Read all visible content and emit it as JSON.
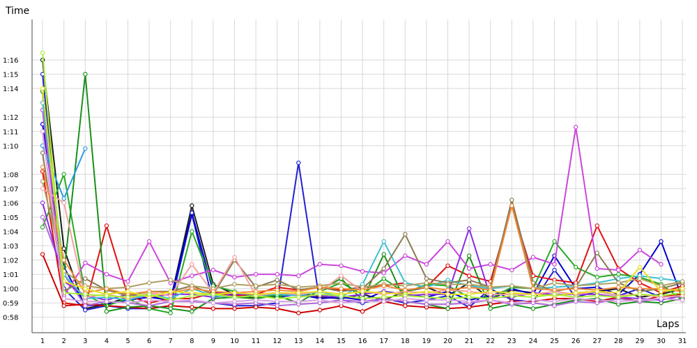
{
  "chart_data": {
    "type": "line",
    "xlabel": "Laps",
    "ylabel": "Time",
    "x": [
      1,
      2,
      3,
      4,
      5,
      6,
      7,
      8,
      9,
      10,
      11,
      12,
      13,
      14,
      15,
      16,
      17,
      18,
      19,
      20,
      21,
      22,
      23,
      24,
      25,
      26,
      27,
      28,
      29,
      30,
      31
    ],
    "xlim": [
      0,
      31
    ],
    "ylim_seconds": [
      57.5,
      78.0
    ],
    "ytick_labels": [
      "0:58",
      "0:59",
      "1:00",
      "1:01",
      "1:02",
      "1:03",
      "1:04",
      "1:05",
      "1:06",
      "1:07",
      "1:08",
      "1:10",
      "1:11",
      "1:12",
      "1:14",
      "1:15",
      "1:16"
    ],
    "ytick_seconds": [
      58,
      59,
      60,
      61,
      62,
      63,
      64,
      65,
      66,
      67,
      68,
      70,
      71,
      72,
      74,
      75,
      76
    ],
    "grid": true,
    "legend": "none",
    "series": [
      {
        "color": "#1a1a1a",
        "values": [
          76.0,
          62.8,
          58.6,
          58.9,
          59.4,
          59.5,
          59.2,
          65.8,
          60.3,
          59.6,
          59.3,
          59.6,
          59.7,
          59.4,
          59.3,
          59.6,
          59.2,
          59.8,
          60.1,
          59.5,
          60.4,
          59.3,
          59.9,
          59.7,
          59.5,
          59.7,
          59.8,
          60.0,
          59.4,
          59.6,
          60.0
        ]
      },
      {
        "color": "#2020d0",
        "values": [
          75.0,
          60.0,
          58.5,
          58.8,
          58.6,
          58.6,
          58.8,
          65.2,
          59.0,
          58.8,
          58.8,
          59.0,
          68.8,
          59.0,
          59.2,
          59.0,
          59.3,
          59.0,
          59.2,
          59.5,
          58.7,
          60.0,
          59.2,
          59.1,
          61.3,
          59.4,
          59.8,
          59.5,
          60.0,
          59.4,
          59.7
        ]
      },
      {
        "color": "#0000cc",
        "values": [
          71.5,
          61.5,
          58.8,
          58.9,
          59.2,
          59.4,
          59.2,
          65.3,
          59.8,
          59.6,
          59.5,
          59.4,
          59.6,
          59.3,
          59.4,
          59.2,
          59.8,
          59.6,
          59.4,
          59.8,
          59.2,
          59.5,
          60.0,
          59.6,
          62.3,
          60.0,
          60.1,
          59.6,
          61.0,
          63.3,
          59.3
        ]
      },
      {
        "color": "#e01010",
        "values": [
          68.2,
          59.0,
          58.8,
          64.4,
          59.5,
          59.0,
          59.3,
          59.3,
          59.7,
          59.5,
          59.6,
          60.1,
          59.9,
          60.1,
          59.9,
          60.1,
          60.2,
          60.4,
          60.1,
          61.6,
          60.9,
          60.5,
          65.8,
          60.9,
          60.6,
          60.4,
          64.4,
          61.4,
          60.4,
          59.7,
          60.2
        ]
      },
      {
        "color": "#cc0000",
        "values": [
          62.4,
          58.8,
          58.9,
          58.8,
          58.7,
          58.6,
          58.8,
          58.7,
          58.6,
          58.6,
          58.7,
          58.6,
          58.3,
          58.5,
          58.8,
          58.4,
          59.1,
          58.8,
          58.7,
          58.6,
          58.7,
          58.9,
          59.1,
          59.1,
          59.3,
          59.3,
          59.1,
          59.4,
          59.1,
          59.5,
          59.6
        ]
      },
      {
        "color": "#22aa22",
        "values": [
          64.3,
          68.0,
          59.6,
          58.8,
          59.3,
          58.6,
          58.3,
          64.0,
          60.2,
          59.8,
          59.4,
          59.5,
          59.6,
          59.8,
          60.4,
          59.6,
          60.7,
          59.7,
          60.3,
          60.2,
          59.4,
          59.3,
          60.1,
          60.0,
          63.3,
          61.5,
          60.8,
          61.0,
          60.8,
          60.3,
          59.2
        ]
      },
      {
        "color": "#1a8f1a",
        "values": [
          73.8,
          61.0,
          75.0,
          58.4,
          58.7,
          58.8,
          58.6,
          58.4,
          59.3,
          59.4,
          59.3,
          59.5,
          59.0,
          59.9,
          60.7,
          59.2,
          62.4,
          59.1,
          58.9,
          58.6,
          62.3,
          58.6,
          58.9,
          58.6,
          58.9,
          59.2,
          59.3,
          58.9,
          59.1,
          59.0,
          59.3
        ]
      },
      {
        "color": "#b26ad8",
        "values": [
          65.0,
          61.0,
          58.8,
          59.1,
          59.0,
          58.8,
          59.1,
          59.1,
          59.0,
          58.9,
          59.0,
          58.8,
          58.9,
          59.0,
          59.2,
          59.1,
          59.3,
          59.1,
          58.9,
          58.9,
          59.0,
          59.2,
          58.9,
          59.0,
          58.8,
          59.1,
          59.0,
          59.3,
          59.1,
          59.3,
          59.2
        ]
      },
      {
        "color": "#cc44dd",
        "values": [
          72.5,
          59.5,
          61.8,
          61.0,
          60.5,
          63.3,
          60.4,
          60.9,
          61.3,
          60.8,
          61.0,
          61.0,
          60.9,
          61.7,
          61.6,
          61.2,
          61.1,
          62.3,
          61.7,
          63.3,
          61.4,
          61.7,
          61.3,
          62.2,
          61.7,
          71.3,
          61.4,
          61.3,
          62.7,
          61.7,
          null
        ]
      },
      {
        "color": "#8a2be2",
        "values": [
          66.0,
          60.5,
          59.5,
          59.2,
          59.6,
          59.4,
          59.6,
          59.6,
          59.4,
          59.6,
          59.6,
          59.7,
          59.5,
          59.5,
          59.4,
          59.6,
          59.8,
          59.5,
          59.6,
          59.6,
          64.2,
          59.4,
          59.4,
          59.7,
          59.6,
          59.6,
          59.6,
          59.4,
          59.3,
          59.2,
          59.5
        ]
      },
      {
        "color": "#2a9be0",
        "values": [
          70.0,
          66.3,
          69.8,
          null,
          null,
          null,
          null,
          null,
          null,
          null,
          null,
          null,
          null,
          null,
          null,
          null,
          null,
          null,
          null,
          null,
          null,
          null,
          null,
          null,
          null,
          null,
          null,
          null,
          null,
          null,
          null
        ]
      },
      {
        "color": "#3fc0d0",
        "values": [
          73.0,
          61.0,
          59.3,
          59.4,
          59.2,
          59.6,
          59.3,
          60.0,
          59.5,
          59.4,
          59.5,
          59.6,
          59.5,
          59.8,
          59.4,
          60.3,
          63.3,
          60.4,
          60.1,
          60.6,
          60.2,
          60.0,
          60.2,
          60.0,
          60.1,
          60.2,
          60.4,
          60.7,
          60.9,
          60.7,
          60.5
        ]
      },
      {
        "color": "#8a7a50",
        "values": [
          69.5,
          59.8,
          60.7,
          59.9,
          59.5,
          59.8,
          59.8,
          60.2,
          59.6,
          62.0,
          60.1,
          60.6,
          59.9,
          60.1,
          59.8,
          60.0,
          61.4,
          63.8,
          60.7,
          60.4,
          60.6,
          60.1,
          66.2,
          60.4,
          59.8,
          60.1,
          62.5,
          60.4,
          59.8,
          60.0,
          60.4
        ]
      },
      {
        "color": "#b0a060",
        "values": [
          67.5,
          61.2,
          60.2,
          60.0,
          60.1,
          60.4,
          60.6,
          60.2,
          60.0,
          60.3,
          60.2,
          60.3,
          60.1,
          60.2,
          60.4,
          60.1,
          60.3,
          60.2,
          60.4,
          60.3,
          60.3,
          60.1,
          60.2,
          60.0,
          60.4,
          60.2,
          60.3,
          60.4,
          60.7,
          60.2,
          60.5
        ]
      },
      {
        "color": "#f4a0a0",
        "values": [
          67.0,
          66.0,
          59.4,
          59.6,
          59.3,
          59.7,
          59.5,
          61.7,
          59.7,
          62.2,
          59.5,
          59.7,
          59.6,
          59.8,
          60.9,
          59.8,
          59.6,
          59.8,
          59.7,
          59.9,
          59.8,
          59.6,
          59.6,
          59.6,
          59.8,
          59.6,
          59.8,
          59.5,
          59.6,
          59.4,
          59.5
        ]
      },
      {
        "color": "#f08a3a",
        "values": [
          68.5,
          62.0,
          59.7,
          60.0,
          59.6,
          59.8,
          59.7,
          60.0,
          59.8,
          59.7,
          59.8,
          59.9,
          59.8,
          60.1,
          60.0,
          59.9,
          60.2,
          59.9,
          60.1,
          59.9,
          60.1,
          59.9,
          65.8,
          60.0,
          59.9,
          60.0,
          59.9,
          60.1,
          60.0,
          60.0,
          59.8
        ]
      },
      {
        "color": "#e8e020",
        "values": [
          74.0,
          60.5,
          60.0,
          59.6,
          59.8,
          59.4,
          59.8,
          59.7,
          59.6,
          59.7,
          59.6,
          59.7,
          59.7,
          59.8,
          59.6,
          59.8,
          59.7,
          59.6,
          59.8,
          59.6,
          59.6,
          59.8,
          59.7,
          59.6,
          59.5,
          59.7,
          59.8,
          59.7,
          61.5,
          59.8,
          60.0
        ]
      },
      {
        "color": "#aaee33",
        "values": [
          76.5,
          59.7,
          59.6,
          59.5,
          59.4,
          59.6,
          59.2,
          59.5,
          59.6,
          59.4,
          59.5,
          59.3,
          59.4,
          59.6,
          59.5,
          59.3,
          59.4,
          59.5,
          59.4,
          59.3,
          59.4,
          59.3,
          59.5,
          59.4,
          59.6,
          59.4,
          59.5,
          59.4,
          59.6,
          59.5,
          59.7
        ]
      },
      {
        "color": "#d8a0e0",
        "values": [
          71.0,
          59.3,
          59.1,
          59.1,
          59.0,
          59.2,
          59.1,
          59.2,
          59.0,
          59.1,
          59.2,
          59.1,
          59.1,
          59.2,
          59.0,
          59.1,
          59.1,
          59.3,
          59.2,
          59.2,
          59.1,
          59.2,
          59.0,
          59.2,
          59.1,
          59.3,
          59.2,
          59.1,
          59.2,
          59.3,
          59.2
        ]
      }
    ]
  }
}
